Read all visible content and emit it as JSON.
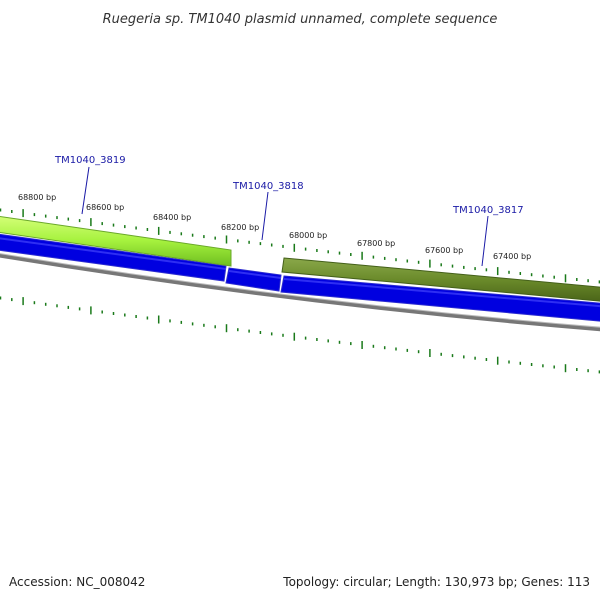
{
  "title": "Ruegeria sp. TM1040 plasmid unnamed, complete sequence",
  "footer": {
    "accession": "Accession: NC_008042",
    "summary": "Topology: circular; Length: 130,973 bp; Genes: 113"
  },
  "position_labels": [
    "68800 bp",
    "68600 bp",
    "68400 bp",
    "68200 bp",
    "68000 bp",
    "67800 bp",
    "67600 bp",
    "67400 bp"
  ],
  "genes": [
    {
      "id": "TM1040_3819",
      "label": "TM1040_3819",
      "color": "#9ee83a"
    },
    {
      "id": "TM1040_3818",
      "label": "TM1040_3818",
      "color": null
    },
    {
      "id": "TM1040_3817",
      "label": "TM1040_3817",
      "color": "#6a8a2a"
    }
  ],
  "colors": {
    "cds_strand": "#0000e0",
    "backbone": "#888888",
    "tick": "#1a7a1a",
    "gene_label": "#1a1aa6"
  }
}
